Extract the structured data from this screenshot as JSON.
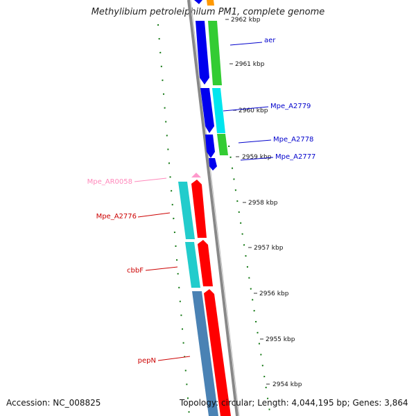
{
  "title": "Methylibium petroleiphilum PM1, complete genome",
  "footer": {
    "accession": "Accession: NC_008825",
    "summary": "Topology: circular; Length: 4,044,195 bp; Genes: 3,864"
  },
  "ticks": [
    {
      "label": "2962 kbp"
    },
    {
      "label": "2961 kbp"
    },
    {
      "label": "2960 kbp"
    },
    {
      "label": "2959 kbp"
    },
    {
      "label": "2958 kbp"
    },
    {
      "label": "2957 kbp"
    },
    {
      "label": "2956 kbp"
    },
    {
      "label": "2955 kbp"
    },
    {
      "label": "2954 kbp"
    }
  ],
  "gene_labels": [
    {
      "text": "aer",
      "color": "#0000cc"
    },
    {
      "text": "Mpe_A2779",
      "color": "#0000cc"
    },
    {
      "text": "Mpe_A2778",
      "color": "#0000cc"
    },
    {
      "text": "Mpe_A2777",
      "color": "#0000cc"
    },
    {
      "text": "Mpe_AR0058",
      "color": "#ff88bb"
    },
    {
      "text": "Mpe_A2776",
      "color": "#cc0000"
    },
    {
      "text": "cbbF",
      "color": "#cc0000"
    },
    {
      "text": "pepN",
      "color": "#cc0000"
    }
  ],
  "colors": {
    "backbone": "#888888",
    "forward_cds": "#0000ee",
    "reverse_cds": "#ff0000",
    "cog_green": "#33cc33",
    "cog_cyan": "#00e5ee",
    "cog_teal": "#22cccc",
    "cog_steel": "#4a82b4",
    "cog_orange": "#ff9900",
    "rna": "#ff99cc",
    "gc_dots": "#117711"
  }
}
